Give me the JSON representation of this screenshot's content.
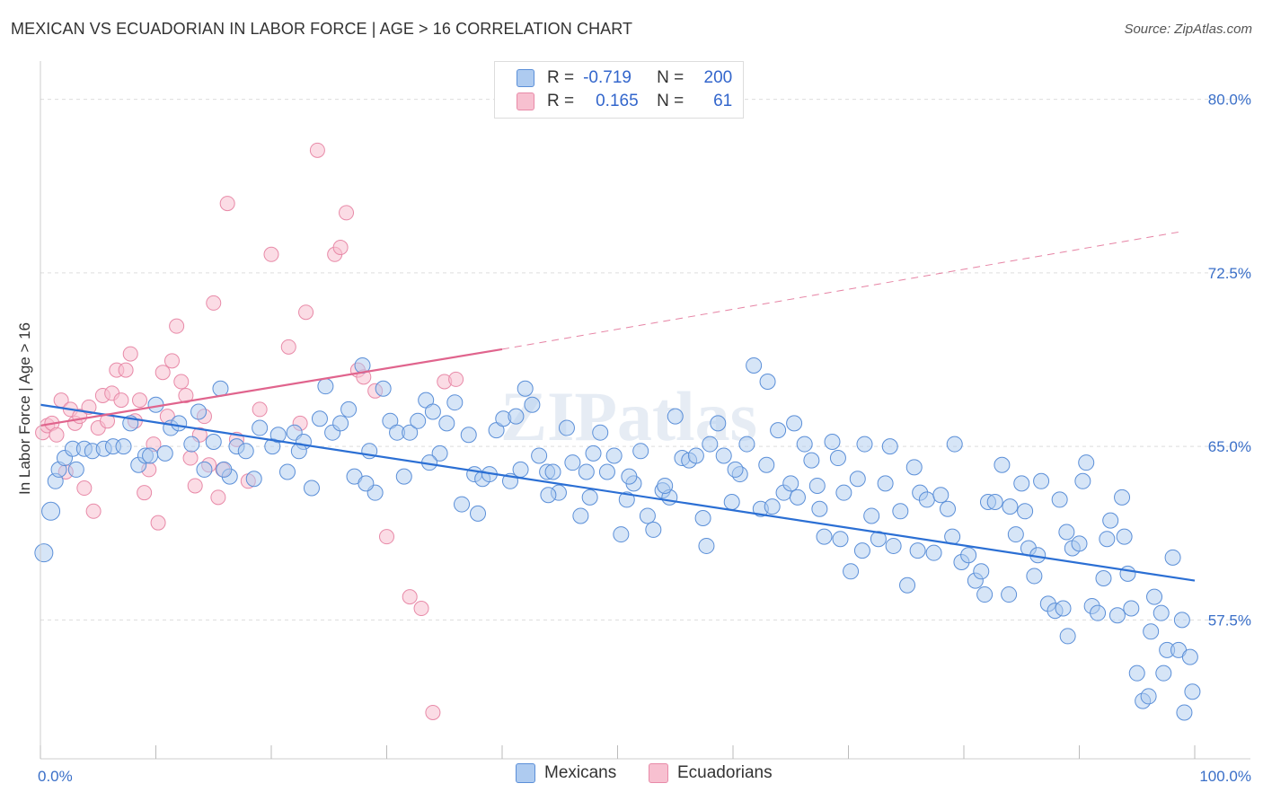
{
  "title": "MEXICAN VS ECUADORIAN IN LABOR FORCE | AGE > 16 CORRELATION CHART",
  "source": "Source: ZipAtlas.com",
  "watermark": "ZIPatlas",
  "legend": {
    "rows": [
      {
        "r_label": "R =",
        "r_value": "-0.719",
        "n_label": "N =",
        "n_value": "200"
      },
      {
        "r_label": "R =",
        "r_value": "0.165",
        "n_label": "N =",
        "n_value": "61"
      }
    ]
  },
  "colors": {
    "mexicans_fill": "#aecbf0",
    "mexicans_stroke": "#5b8fd8",
    "mexicans_line": "#2b6fd4",
    "ecuadorians_fill": "#f7c0d0",
    "ecuadorians_stroke": "#e88aa8",
    "ecuadorians_line": "#e0648d",
    "tick_text": "#3a6fc8",
    "grid": "#dddddd"
  },
  "chart_data": {
    "type": "scatter",
    "title": "MEXICAN VS ECUADORIAN IN LABOR FORCE | AGE > 16 CORRELATION CHART",
    "xlabel": "",
    "ylabel": "In Labor Force | Age > 16",
    "xlim": [
      0,
      100
    ],
    "ylim": [
      51.5,
      81.5
    ],
    "x_tick_labels": [
      "0.0%",
      "100.0%"
    ],
    "y_ticks": [
      57.5,
      65.0,
      72.5,
      80.0
    ],
    "y_tick_labels": [
      "57.5%",
      "65.0%",
      "72.5%",
      "80.0%"
    ],
    "grid": true,
    "legend_position": "top-center",
    "series": [
      {
        "name": "Mexicans",
        "r": -0.719,
        "n": 200,
        "trend": {
          "x": [
            0,
            100
          ],
          "y": [
            66.8,
            59.2
          ]
        },
        "points": [
          [
            0.3,
            60.4
          ],
          [
            0.9,
            62.2
          ],
          [
            1.3,
            63.5
          ],
          [
            1.6,
            64.0
          ],
          [
            2.1,
            64.5
          ],
          [
            2.8,
            64.9
          ],
          [
            3.1,
            64.0
          ],
          [
            3.8,
            64.9
          ],
          [
            4.5,
            64.8
          ],
          [
            5.5,
            64.9
          ],
          [
            6.3,
            65.0
          ],
          [
            7.2,
            65.0
          ],
          [
            7.8,
            66.0
          ],
          [
            8.5,
            64.2
          ],
          [
            9.1,
            64.6
          ],
          [
            10.0,
            66.8
          ],
          [
            10.8,
            64.7
          ],
          [
            11.3,
            65.8
          ],
          [
            12.0,
            66.0
          ],
          [
            13.1,
            65.1
          ],
          [
            13.7,
            66.5
          ],
          [
            14.2,
            64.0
          ],
          [
            15.0,
            65.2
          ],
          [
            15.6,
            67.5
          ],
          [
            16.4,
            63.7
          ],
          [
            17.0,
            65.0
          ],
          [
            17.8,
            64.8
          ],
          [
            18.5,
            63.6
          ],
          [
            19.0,
            65.8
          ],
          [
            20.1,
            65.0
          ],
          [
            20.6,
            65.5
          ],
          [
            21.4,
            63.9
          ],
          [
            22.0,
            65.6
          ],
          [
            22.8,
            65.2
          ],
          [
            23.5,
            63.2
          ],
          [
            24.2,
            66.2
          ],
          [
            24.7,
            67.6
          ],
          [
            25.3,
            65.6
          ],
          [
            26.0,
            66.0
          ],
          [
            26.7,
            66.6
          ],
          [
            27.2,
            63.7
          ],
          [
            27.9,
            68.5
          ],
          [
            28.5,
            64.8
          ],
          [
            29.0,
            63.0
          ],
          [
            29.7,
            67.5
          ],
          [
            30.3,
            66.1
          ],
          [
            30.9,
            65.6
          ],
          [
            31.5,
            63.7
          ],
          [
            32.0,
            65.6
          ],
          [
            32.7,
            66.1
          ],
          [
            33.4,
            67.0
          ],
          [
            34.0,
            66.5
          ],
          [
            34.6,
            64.7
          ],
          [
            35.2,
            66.0
          ],
          [
            35.9,
            66.9
          ],
          [
            36.5,
            62.5
          ],
          [
            37.1,
            65.5
          ],
          [
            37.6,
            63.8
          ],
          [
            38.3,
            63.6
          ],
          [
            38.9,
            63.8
          ],
          [
            39.5,
            65.7
          ],
          [
            40.1,
            66.2
          ],
          [
            40.7,
            63.5
          ],
          [
            41.2,
            66.3
          ],
          [
            42.0,
            67.5
          ],
          [
            42.6,
            66.8
          ],
          [
            43.2,
            64.6
          ],
          [
            43.9,
            63.9
          ],
          [
            44.4,
            63.9
          ],
          [
            44.9,
            63.0
          ],
          [
            45.6,
            65.8
          ],
          [
            46.1,
            64.3
          ],
          [
            46.8,
            62.0
          ],
          [
            47.3,
            63.9
          ],
          [
            47.9,
            64.7
          ],
          [
            48.5,
            65.6
          ],
          [
            49.1,
            63.9
          ],
          [
            49.7,
            64.6
          ],
          [
            50.3,
            61.2
          ],
          [
            50.8,
            62.7
          ],
          [
            51.4,
            63.4
          ],
          [
            52.0,
            64.8
          ],
          [
            52.6,
            62.0
          ],
          [
            53.1,
            61.4
          ],
          [
            53.9,
            63.1
          ],
          [
            54.5,
            62.8
          ],
          [
            55.0,
            66.3
          ],
          [
            55.6,
            64.5
          ],
          [
            56.2,
            64.4
          ],
          [
            56.8,
            64.6
          ],
          [
            57.4,
            61.9
          ],
          [
            58.0,
            65.1
          ],
          [
            58.7,
            66.0
          ],
          [
            59.2,
            64.6
          ],
          [
            59.9,
            62.6
          ],
          [
            60.6,
            63.8
          ],
          [
            61.2,
            65.1
          ],
          [
            61.8,
            68.5
          ],
          [
            62.4,
            62.3
          ],
          [
            62.9,
            64.2
          ],
          [
            63.4,
            62.4
          ],
          [
            63.9,
            65.7
          ],
          [
            64.4,
            63.0
          ],
          [
            65.0,
            63.4
          ],
          [
            65.6,
            62.8
          ],
          [
            66.2,
            65.1
          ],
          [
            66.8,
            64.4
          ],
          [
            67.3,
            63.3
          ],
          [
            67.9,
            61.1
          ],
          [
            68.6,
            65.2
          ],
          [
            69.1,
            64.5
          ],
          [
            69.6,
            63.0
          ],
          [
            70.2,
            59.6
          ],
          [
            70.8,
            63.6
          ],
          [
            71.4,
            65.1
          ],
          [
            72.0,
            62.0
          ],
          [
            72.6,
            61.0
          ],
          [
            73.2,
            63.4
          ],
          [
            73.9,
            60.7
          ],
          [
            74.5,
            62.2
          ],
          [
            75.1,
            59.0
          ],
          [
            75.7,
            64.1
          ],
          [
            76.2,
            63.0
          ],
          [
            76.8,
            62.7
          ],
          [
            77.4,
            60.4
          ],
          [
            78.0,
            62.9
          ],
          [
            78.6,
            62.3
          ],
          [
            79.2,
            65.1
          ],
          [
            79.8,
            60.0
          ],
          [
            80.4,
            60.3
          ],
          [
            81.0,
            59.2
          ],
          [
            81.5,
            59.6
          ],
          [
            82.1,
            62.6
          ],
          [
            82.7,
            62.6
          ],
          [
            83.3,
            64.2
          ],
          [
            83.9,
            58.6
          ],
          [
            84.5,
            61.2
          ],
          [
            85.0,
            63.4
          ],
          [
            85.6,
            60.6
          ],
          [
            86.1,
            59.4
          ],
          [
            86.7,
            63.5
          ],
          [
            87.3,
            58.2
          ],
          [
            87.9,
            57.9
          ],
          [
            88.3,
            62.7
          ],
          [
            88.9,
            61.3
          ],
          [
            89.4,
            60.6
          ],
          [
            90.0,
            60.8
          ],
          [
            90.6,
            64.3
          ],
          [
            91.1,
            58.1
          ],
          [
            91.6,
            57.8
          ],
          [
            92.1,
            59.3
          ],
          [
            92.7,
            61.8
          ],
          [
            93.3,
            57.7
          ],
          [
            93.9,
            61.1
          ],
          [
            94.5,
            58.0
          ],
          [
            95.0,
            55.2
          ],
          [
            95.5,
            54.0
          ],
          [
            96.0,
            54.2
          ],
          [
            96.5,
            58.5
          ],
          [
            97.1,
            57.8
          ],
          [
            97.6,
            56.2
          ],
          [
            98.1,
            60.2
          ],
          [
            98.6,
            56.2
          ],
          [
            99.1,
            53.5
          ],
          [
            99.6,
            55.9
          ],
          [
            99.8,
            54.4
          ],
          [
            9.5,
            64.6
          ],
          [
            15.9,
            64.0
          ],
          [
            22.4,
            64.8
          ],
          [
            28.2,
            63.4
          ],
          [
            33.7,
            64.3
          ],
          [
            37.9,
            62.1
          ],
          [
            41.6,
            64.0
          ],
          [
            44.0,
            62.9
          ],
          [
            47.6,
            62.8
          ],
          [
            51.0,
            63.7
          ],
          [
            54.1,
            63.3
          ],
          [
            57.7,
            60.7
          ],
          [
            60.2,
            64.0
          ],
          [
            63.0,
            67.8
          ],
          [
            65.3,
            66.0
          ],
          [
            67.5,
            62.3
          ],
          [
            69.3,
            61.0
          ],
          [
            71.2,
            60.5
          ],
          [
            73.6,
            65.0
          ],
          [
            76.0,
            60.5
          ],
          [
            79.0,
            61.1
          ],
          [
            81.8,
            58.6
          ],
          [
            84.0,
            62.4
          ],
          [
            86.4,
            60.3
          ],
          [
            88.6,
            58.0
          ],
          [
            90.3,
            63.5
          ],
          [
            92.4,
            61.0
          ],
          [
            94.2,
            59.5
          ],
          [
            96.2,
            57.0
          ],
          [
            97.3,
            55.2
          ],
          [
            98.9,
            57.5
          ],
          [
            93.7,
            62.8
          ],
          [
            89.0,
            56.8
          ],
          [
            85.3,
            62.2
          ]
        ]
      },
      {
        "name": "Ecuadorians",
        "r": 0.165,
        "n": 61,
        "trend": {
          "x": [
            0,
            40
          ],
          "y": [
            65.9,
            69.2
          ]
        },
        "trend_extension": {
          "x": [
            40,
            99
          ],
          "y": [
            69.2,
            74.3
          ]
        },
        "points": [
          [
            0.2,
            65.6
          ],
          [
            0.6,
            65.9
          ],
          [
            1.0,
            66.0
          ],
          [
            1.4,
            65.5
          ],
          [
            1.8,
            67.0
          ],
          [
            2.2,
            63.9
          ],
          [
            2.6,
            66.6
          ],
          [
            3.0,
            66.0
          ],
          [
            3.4,
            66.3
          ],
          [
            3.8,
            63.2
          ],
          [
            4.2,
            66.7
          ],
          [
            4.6,
            62.2
          ],
          [
            5.0,
            65.8
          ],
          [
            5.4,
            67.2
          ],
          [
            5.8,
            66.1
          ],
          [
            6.2,
            67.3
          ],
          [
            6.6,
            68.3
          ],
          [
            7.0,
            67.0
          ],
          [
            7.4,
            68.3
          ],
          [
            7.8,
            69.0
          ],
          [
            8.2,
            66.1
          ],
          [
            8.6,
            67.0
          ],
          [
            9.0,
            63.0
          ],
          [
            9.4,
            64.0
          ],
          [
            9.8,
            65.1
          ],
          [
            10.2,
            61.7
          ],
          [
            10.6,
            68.2
          ],
          [
            11.0,
            66.3
          ],
          [
            11.4,
            68.7
          ],
          [
            11.8,
            70.2
          ],
          [
            12.2,
            67.8
          ],
          [
            12.6,
            67.2
          ],
          [
            13.0,
            64.5
          ],
          [
            13.4,
            63.3
          ],
          [
            13.8,
            65.5
          ],
          [
            14.2,
            66.3
          ],
          [
            14.6,
            64.2
          ],
          [
            15.0,
            71.2
          ],
          [
            15.4,
            62.8
          ],
          [
            15.8,
            64.0
          ],
          [
            16.2,
            75.5
          ],
          [
            17.0,
            65.3
          ],
          [
            18.0,
            63.5
          ],
          [
            19.0,
            66.6
          ],
          [
            20.0,
            73.3
          ],
          [
            21.5,
            69.3
          ],
          [
            22.5,
            66.0
          ],
          [
            23.0,
            70.8
          ],
          [
            24.0,
            77.8
          ],
          [
            25.5,
            73.3
          ],
          [
            26.0,
            73.6
          ],
          [
            26.5,
            75.1
          ],
          [
            27.5,
            68.3
          ],
          [
            28.0,
            68.0
          ],
          [
            29.0,
            67.4
          ],
          [
            30.0,
            61.1
          ],
          [
            32.0,
            58.5
          ],
          [
            33.0,
            58.0
          ],
          [
            34.0,
            53.5
          ],
          [
            35.0,
            67.8
          ],
          [
            36.0,
            67.9
          ]
        ]
      }
    ]
  }
}
